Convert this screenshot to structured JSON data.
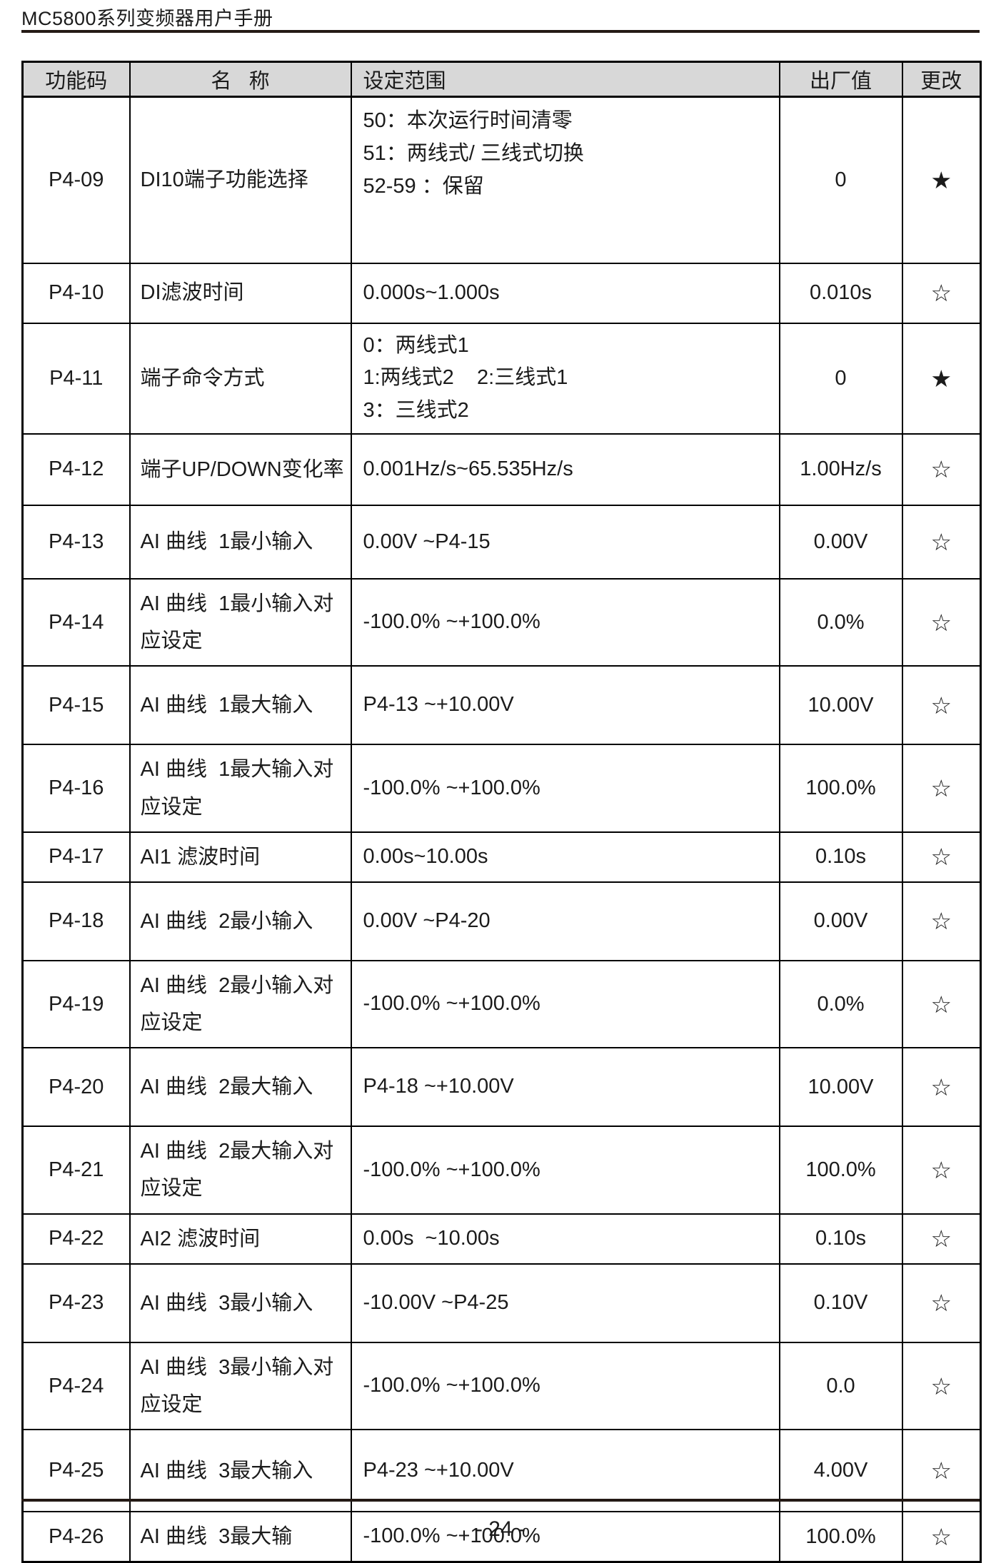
{
  "page": {
    "header_title": "MC5800系列变频器用户手册",
    "footer_page": "- 24 -"
  },
  "table": {
    "columns": [
      "功能码",
      "名   称",
      "设定范围",
      "出厂值",
      "更改"
    ],
    "change_flags": {
      "filled_star": "★",
      "hollow_star": "☆"
    },
    "colors": {
      "header_bg": "#d8d8d8",
      "border": "#000000",
      "rule": "#241a15"
    },
    "rows": [
      {
        "code": "P4-09",
        "name": "DI10端子功能选择",
        "range_lines": [
          "50：本次运行时间清零",
          "51：两线式/ 三线式切换",
          "52-59 ：保留"
        ],
        "default": "0",
        "change": "★"
      },
      {
        "code": "P4-10",
        "name": "DI滤波时间",
        "range_lines": [
          "0.000s~1.000s"
        ],
        "default": "0.010s",
        "change": "☆"
      },
      {
        "code": "P4-11",
        "name": "端子命令方式",
        "range_lines": [
          "0：两线式1",
          "1:两线式2    2:三线式1",
          "3：三线式2"
        ],
        "default": "0",
        "change": "★"
      },
      {
        "code": "P4-12",
        "name": "端子UP/DOWN变化率",
        "range_lines": [
          "0.001Hz/s~65.535Hz/s"
        ],
        "default": "1.00Hz/s",
        "change": "☆"
      },
      {
        "code": "P4-13",
        "name": "AI 曲线  1最小输入",
        "range_lines": [
          "0.00V ~P4-15"
        ],
        "default": "0.00V",
        "change": "☆"
      },
      {
        "code": "P4-14",
        "name": "AI 曲线  1最小输入对应设定",
        "range_lines": [
          "-100.0% ~+100.0%"
        ],
        "default": "0.0%",
        "change": "☆"
      },
      {
        "code": "P4-15",
        "name": "AI 曲线  1最大输入",
        "range_lines": [
          "P4-13 ~+10.00V"
        ],
        "default": "10.00V",
        "change": "☆"
      },
      {
        "code": "P4-16",
        "name": "AI 曲线  1最大输入对应设定",
        "range_lines": [
          "-100.0% ~+100.0%"
        ],
        "default": "100.0%",
        "change": "☆"
      },
      {
        "code": "P4-17",
        "name": "AI1 滤波时间",
        "range_lines": [
          "0.00s~10.00s"
        ],
        "default": "0.10s",
        "change": "☆"
      },
      {
        "code": "P4-18",
        "name": "AI 曲线  2最小输入",
        "range_lines": [
          "0.00V ~P4-20"
        ],
        "default": "0.00V",
        "change": "☆"
      },
      {
        "code": "P4-19",
        "name": "AI 曲线  2最小输入对应设定",
        "range_lines": [
          "-100.0% ~+100.0%"
        ],
        "default": "0.0%",
        "change": "☆"
      },
      {
        "code": "P4-20",
        "name": "AI 曲线  2最大输入",
        "range_lines": [
          "P4-18 ~+10.00V"
        ],
        "default": "10.00V",
        "change": "☆"
      },
      {
        "code": "P4-21",
        "name": "AI 曲线  2最大输入对应设定",
        "range_lines": [
          "-100.0% ~+100.0%"
        ],
        "default": "100.0%",
        "change": "☆"
      },
      {
        "code": "P4-22",
        "name": "AI2 滤波时间",
        "range_lines": [
          "0.00s  ~10.00s"
        ],
        "default": "0.10s",
        "change": "☆"
      },
      {
        "code": "P4-23",
        "name": "AI 曲线  3最小输入",
        "range_lines": [
          "-10.00V ~P4-25"
        ],
        "default": "0.10V",
        "change": "☆"
      },
      {
        "code": "P4-24",
        "name": "AI 曲线  3最小输入对应设定",
        "range_lines": [
          "-100.0% ~+100.0%"
        ],
        "default": "0.0",
        "change": "☆"
      },
      {
        "code": "P4-25",
        "name": "AI 曲线  3最大输入",
        "range_lines": [
          "P4-23 ~+10.00V"
        ],
        "default": "4.00V",
        "change": "☆"
      },
      {
        "code": "P4-26",
        "name": "AI 曲线  3最大输",
        "range_lines": [
          "-100.0% ~+100.0%"
        ],
        "default": "100.0%",
        "change": "☆"
      }
    ]
  }
}
